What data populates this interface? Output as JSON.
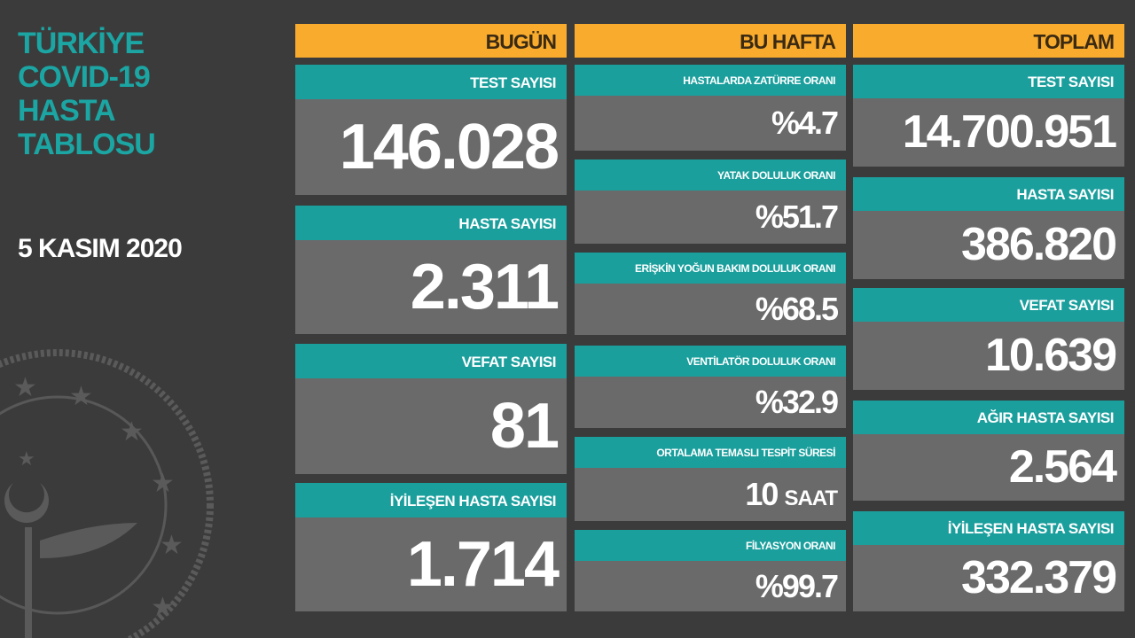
{
  "title": [
    "TÜRKİYE",
    "COVID-19",
    "HASTA",
    "TABLOSU"
  ],
  "date": "5 KASIM 2020",
  "colors": {
    "background": "#3b3b3b",
    "header": "#f8ab2c",
    "label": "#1a9f9d",
    "value_box": "#6a6a6a",
    "title": "#1ba5a3"
  },
  "logo": "ministry-of-health-seal",
  "today": {
    "header": "BUGÜN",
    "items": [
      {
        "label": "TEST SAYISI",
        "value": "146.028"
      },
      {
        "label": "HASTA SAYISI",
        "value": "2.311"
      },
      {
        "label": "VEFAT SAYISI",
        "value": "81"
      },
      {
        "label": "İYİLEŞEN HASTA SAYISI",
        "value": "1.714"
      }
    ]
  },
  "week": {
    "header": "BU HAFTA",
    "items": [
      {
        "label": "HASTALARDA ZATÜRRE ORANI",
        "value": "%4.7"
      },
      {
        "label": "YATAK DOLULUK ORANI",
        "value": "%51.7"
      },
      {
        "label": "ERİŞKİN YOĞUN BAKIM DOLULUK ORANI",
        "value": "%68.5"
      },
      {
        "label": "VENTİLATÖR DOLULUK ORANI",
        "value": "%32.9"
      },
      {
        "label": "ORTALAMA TEMASLI TESPİT SÜRESİ",
        "value": "10",
        "unit": "SAAT"
      },
      {
        "label": "FİLYASYON ORANI",
        "value": "%99.7"
      }
    ]
  },
  "total": {
    "header": "TOPLAM",
    "items": [
      {
        "label": "TEST SAYISI",
        "value": "14.700.951"
      },
      {
        "label": "HASTA SAYISI",
        "value": "386.820"
      },
      {
        "label": "VEFAT SAYISI",
        "value": "10.639"
      },
      {
        "label": "AĞIR HASTA SAYISI",
        "value": "2.564"
      },
      {
        "label": "İYİLEŞEN HASTA SAYISI",
        "value": "332.379"
      }
    ]
  }
}
